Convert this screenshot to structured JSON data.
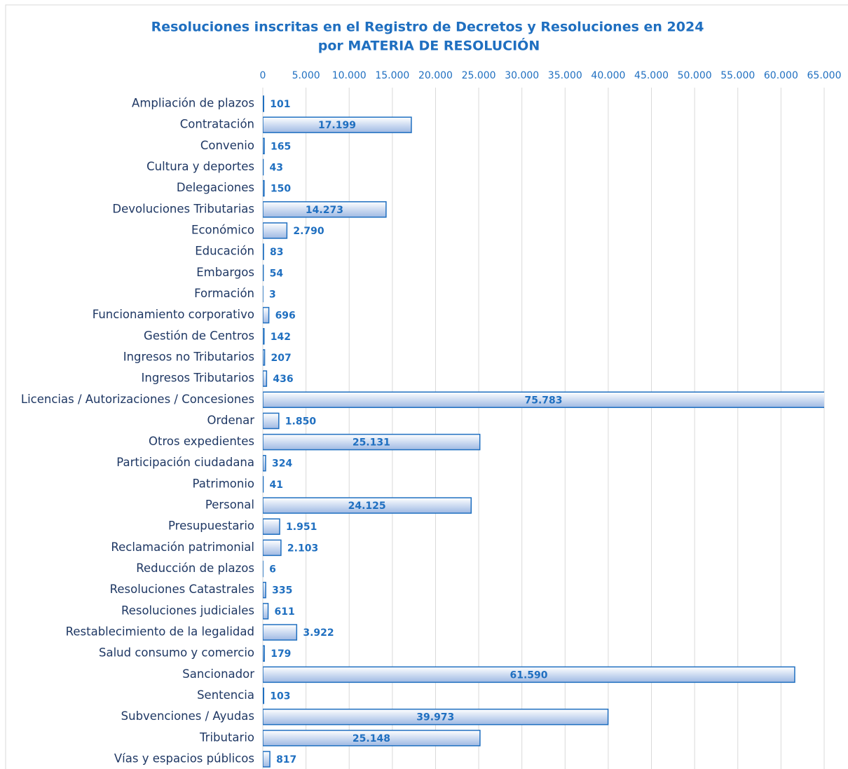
{
  "chart_data": {
    "type": "barh",
    "title": "Resoluciones inscritas en el Registro de Decretos y Resoluciones en 2024",
    "subtitle": "por MATERIA DE RESOLUCIÓN",
    "categories": [
      "Ampliación de plazos",
      "Contratación",
      "Convenio",
      "Cultura y deportes",
      "Delegaciones",
      "Devoluciones Tributarias",
      "Económico",
      "Educación",
      "Embargos",
      "Formación",
      "Funcionamiento corporativo",
      "Gestión de Centros",
      "Ingresos no Tributarios",
      "Ingresos Tributarios",
      "Licencias / Autorizaciones / Concesiones",
      "Ordenar",
      "Otros expedientes",
      "Participación ciudadana",
      "Patrimonio",
      "Personal",
      "Presupuestario",
      "Reclamación patrimonial",
      "Reducción de plazos",
      "Resoluciones Catastrales",
      "Resoluciones judiciales",
      "Restablecimiento de la legalidad",
      "Salud consumo y comercio",
      "Sancionador",
      "Sentencia",
      "Subvenciones / Ayudas",
      "Tributario",
      "Vías y espacios públicos"
    ],
    "values": [
      101,
      17199,
      165,
      43,
      150,
      14273,
      2790,
      83,
      54,
      3,
      696,
      142,
      207,
      436,
      75783,
      1850,
      25131,
      324,
      41,
      24125,
      1951,
      2103,
      6,
      335,
      611,
      3922,
      179,
      61590,
      103,
      39973,
      25148,
      817
    ],
    "value_labels": [
      "101",
      "17.199",
      "165",
      "43",
      "150",
      "14.273",
      "2.790",
      "83",
      "54",
      "3",
      "696",
      "142",
      "207",
      "436",
      "75.783",
      "1.850",
      "25.131",
      "324",
      "41",
      "24.125",
      "1.951",
      "2.103",
      "6",
      "335",
      "611",
      "3.922",
      "179",
      "61.590",
      "103",
      "39.973",
      "25.148",
      "817"
    ],
    "color": "#1f6fc0",
    "xlim": [
      0,
      65000
    ],
    "xticks": [
      0,
      {
        "value": 5000,
        "label": "5.000"
      },
      {
        "value": 10000,
        "label": "10.000"
      },
      {
        "value": 15000,
        "label": "15.000"
      },
      {
        "value": 20000,
        "label": "20.000"
      },
      {
        "value": 25000,
        "label": "25.000"
      },
      {
        "value": 30000,
        "label": "30.000"
      },
      {
        "value": 35000,
        "label": "35.000"
      },
      {
        "value": 40000,
        "label": "40.000"
      },
      {
        "value": 45000,
        "label": "45.000"
      },
      {
        "value": 50000,
        "label": "50.000"
      },
      {
        "value": 55000,
        "label": "55.000"
      },
      {
        "value": 60000,
        "label": "60.000"
      },
      {
        "value": 65000,
        "label": "65.000"
      }
    ],
    "grid": true
  }
}
